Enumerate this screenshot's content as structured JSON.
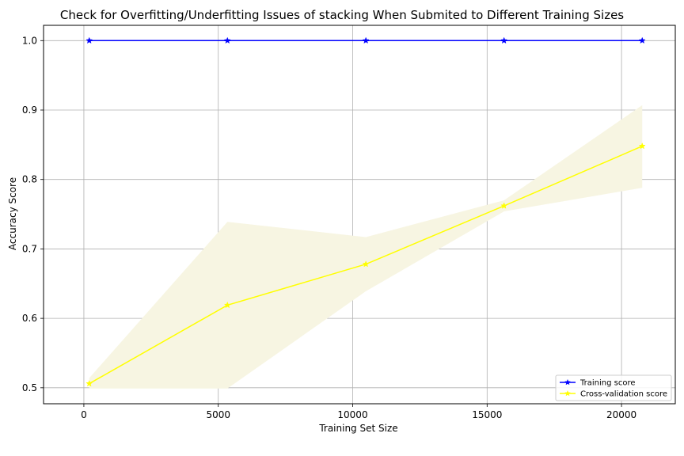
{
  "chart_data": {
    "type": "line",
    "title": "Check for Overfitting/Underfitting Issues of stacking When Submited to Different Training Sizes",
    "xlabel": "Training Set Size",
    "ylabel": "Accuracy Score",
    "xlim": [
      -1500,
      22000
    ],
    "ylim": [
      0.477,
      1.022
    ],
    "xticks": [
      0,
      5000,
      10000,
      15000,
      20000
    ],
    "yticks": [
      0.5,
      0.6,
      0.7,
      0.8,
      0.9,
      1.0
    ],
    "grid": true,
    "legend_position": "lower right",
    "x": [
      200,
      5340,
      10490,
      15630,
      20770
    ],
    "series": [
      {
        "name": "Training score",
        "color": "#0000ff",
        "marker": "star",
        "values": [
          1.0,
          1.0,
          1.0,
          1.0,
          1.0
        ],
        "band_lower": [
          1.0,
          1.0,
          1.0,
          1.0,
          1.0
        ],
        "band_upper": [
          1.0,
          1.0,
          1.0,
          1.0,
          1.0
        ],
        "band_color": "#cbd3ee"
      },
      {
        "name": "Cross-validation score",
        "color": "#ffff00",
        "marker": "star",
        "values": [
          0.506,
          0.619,
          0.678,
          0.762,
          0.848
        ],
        "band_lower": [
          0.499,
          0.499,
          0.639,
          0.754,
          0.788
        ],
        "band_upper": [
          0.514,
          0.739,
          0.717,
          0.77,
          0.907
        ],
        "band_color": "#f7f5e2"
      }
    ]
  }
}
